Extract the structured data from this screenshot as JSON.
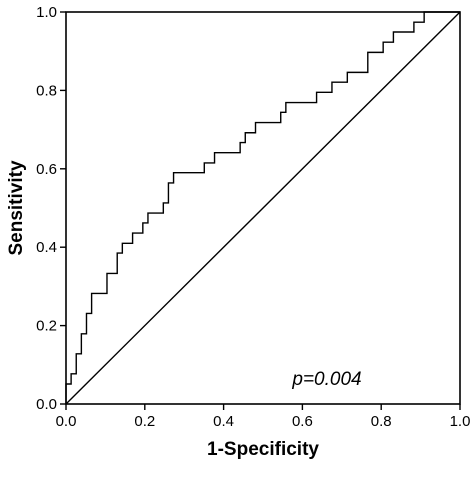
{
  "chart_data": {
    "type": "line",
    "xlabel": "1-Specificity",
    "ylabel": "Sensitivity",
    "xlim": [
      0.0,
      1.0
    ],
    "ylim": [
      0.0,
      1.0
    ],
    "x_ticks": [
      "0.0",
      "0.2",
      "0.4",
      "0.6",
      "0.8",
      "1.0"
    ],
    "y_ticks": [
      "0.0",
      "0.2",
      "0.4",
      "0.6",
      "0.8",
      "1.0"
    ],
    "grid": false,
    "annotation": "p=0.004",
    "series": [
      {
        "style": "step",
        "points": [
          [
            0.0,
            0.0
          ],
          [
            0.0,
            0.051
          ],
          [
            0.013,
            0.051
          ],
          [
            0.013,
            0.077
          ],
          [
            0.026,
            0.077
          ],
          [
            0.026,
            0.128
          ],
          [
            0.039,
            0.128
          ],
          [
            0.039,
            0.179
          ],
          [
            0.052,
            0.179
          ],
          [
            0.052,
            0.231
          ],
          [
            0.065,
            0.231
          ],
          [
            0.065,
            0.282
          ],
          [
            0.104,
            0.282
          ],
          [
            0.104,
            0.333
          ],
          [
            0.13,
            0.333
          ],
          [
            0.13,
            0.385
          ],
          [
            0.143,
            0.385
          ],
          [
            0.143,
            0.41
          ],
          [
            0.169,
            0.41
          ],
          [
            0.169,
            0.436
          ],
          [
            0.195,
            0.436
          ],
          [
            0.195,
            0.462
          ],
          [
            0.208,
            0.462
          ],
          [
            0.208,
            0.487
          ],
          [
            0.247,
            0.487
          ],
          [
            0.247,
            0.513
          ],
          [
            0.26,
            0.513
          ],
          [
            0.26,
            0.564
          ],
          [
            0.273,
            0.564
          ],
          [
            0.273,
            0.59
          ],
          [
            0.351,
            0.59
          ],
          [
            0.351,
            0.615
          ],
          [
            0.377,
            0.615
          ],
          [
            0.377,
            0.641
          ],
          [
            0.442,
            0.641
          ],
          [
            0.442,
            0.667
          ],
          [
            0.455,
            0.667
          ],
          [
            0.455,
            0.692
          ],
          [
            0.481,
            0.692
          ],
          [
            0.481,
            0.718
          ],
          [
            0.545,
            0.718
          ],
          [
            0.545,
            0.744
          ],
          [
            0.558,
            0.744
          ],
          [
            0.558,
            0.769
          ],
          [
            0.636,
            0.769
          ],
          [
            0.636,
            0.795
          ],
          [
            0.675,
            0.795
          ],
          [
            0.675,
            0.821
          ],
          [
            0.714,
            0.821
          ],
          [
            0.714,
            0.846
          ],
          [
            0.766,
            0.846
          ],
          [
            0.766,
            0.897
          ],
          [
            0.805,
            0.897
          ],
          [
            0.805,
            0.923
          ],
          [
            0.831,
            0.923
          ],
          [
            0.831,
            0.949
          ],
          [
            0.883,
            0.949
          ],
          [
            0.883,
            0.974
          ],
          [
            0.909,
            0.974
          ],
          [
            0.909,
            1.0
          ],
          [
            1.0,
            1.0
          ]
        ]
      },
      {
        "style": "diagonal",
        "points": [
          [
            0.0,
            0.0
          ],
          [
            1.0,
            1.0
          ]
        ]
      }
    ]
  }
}
